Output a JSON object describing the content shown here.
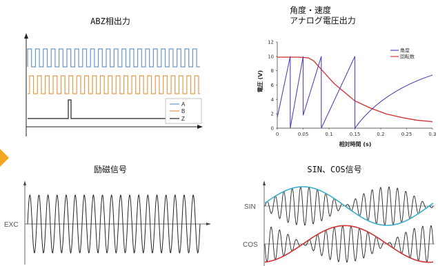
{
  "panels": {
    "abz": {
      "title": "ABZ相出力",
      "legend": [
        "A",
        "B",
        "Z"
      ],
      "colors": {
        "A": "#6b97c9",
        "B": "#e39a4a",
        "Z": "#222222"
      }
    },
    "analog": {
      "title_line1": "角度・速度",
      "title_line2": "アナログ電圧出力"
    },
    "exc": {
      "title": "励磁信号",
      "label": "EXC"
    },
    "sincos": {
      "title": "SIN、COS信号",
      "sin_label": "SIN",
      "cos_label": "COS",
      "sin_envelope_color": "#3aaecc",
      "cos_envelope_color": "#cc3333"
    }
  },
  "chart_data": {
    "type": "line",
    "xlabel": "相対時間 (s)",
    "ylabel": "電圧 (V)",
    "xlim": [
      0,
      0.3
    ],
    "ylim": [
      0,
      12
    ],
    "xticks": [
      "0",
      "0.05",
      "0.1",
      "0.15",
      "0.2",
      "0.25",
      "0.3"
    ],
    "yticks": [
      "0",
      "2",
      "4",
      "6",
      "8",
      "10",
      "12"
    ],
    "legend_position": "top-right",
    "series": [
      {
        "name": "角度",
        "color": "#5b3fb5",
        "x": [
          0,
          0.025,
          0.025,
          0.05,
          0.05,
          0.085,
          0.085,
          0.15,
          0.15,
          0.2,
          0.25,
          0.3
        ],
        "y": [
          1.5,
          10,
          0,
          10,
          1.8,
          10,
          0,
          10,
          0,
          3.5,
          5.9,
          7.4
        ]
      },
      {
        "name": "回転数",
        "color": "#d23a3a",
        "x": [
          0,
          0.02,
          0.04,
          0.06,
          0.07,
          0.09,
          0.11,
          0.13,
          0.15,
          0.18,
          0.21,
          0.24,
          0.27,
          0.3
        ],
        "y": [
          9.9,
          9.9,
          9.9,
          9.8,
          9.4,
          7.8,
          6.2,
          5.0,
          3.8,
          2.8,
          2.0,
          1.5,
          1.1,
          0.9
        ]
      }
    ]
  }
}
